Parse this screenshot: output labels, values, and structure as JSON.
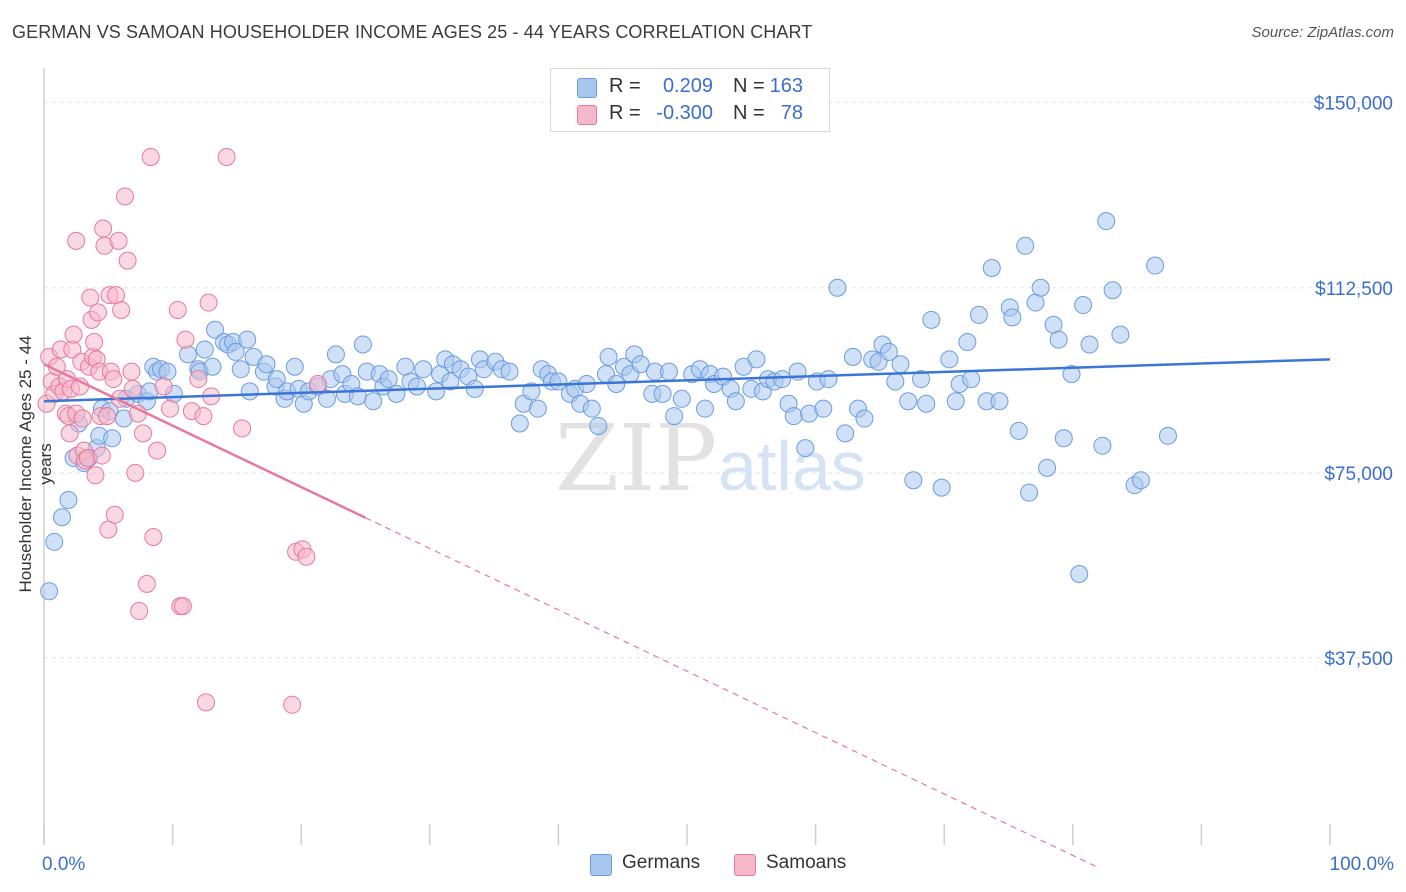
{
  "title": "GERMAN VS SAMOAN HOUSEHOLDER INCOME AGES 25 - 44 YEARS CORRELATION CHART",
  "source": "Source: ZipAtlas.com",
  "watermark": {
    "zip": "ZIP",
    "atlas": "atlas"
  },
  "legend_top": [
    {
      "r_label": "R =",
      "r_value": "0.209",
      "n_label": "N =",
      "n_value": "163",
      "color": "#a9c6ee"
    },
    {
      "r_label": "R =",
      "r_value": "-0.300",
      "n_label": "N =",
      "n_value": "78",
      "color": "#f5b8cb"
    }
  ],
  "legend_bottom": [
    {
      "label": "Germans",
      "color": "#a9c6ee"
    },
    {
      "label": "Samoans",
      "color": "#f5b8cb"
    }
  ],
  "chart_data": {
    "type": "scatter",
    "title": "GERMAN VS SAMOAN HOUSEHOLDER INCOME AGES 25 - 44 YEARS CORRELATION CHART",
    "xlabel": "",
    "ylabel": "Householder Income Ages 25 - 44 years",
    "xlim": [
      0,
      100
    ],
    "ylim": [
      0,
      155000
    ],
    "x_tick_labels": [
      "0.0%",
      "100.0%"
    ],
    "y_ticks": [
      37500,
      75000,
      112500,
      150000
    ],
    "y_tick_labels": [
      "$37,500",
      "$75,000",
      "$112,500",
      "$150,000"
    ],
    "grid": true,
    "legend_position": "top-center",
    "series": [
      {
        "name": "Germans",
        "color": "#6b9de0",
        "fill": "#a9c6ee",
        "trend": {
          "x": [
            0,
            100
          ],
          "y": [
            89500,
            98000
          ]
        },
        "points": [
          [
            0.4,
            51000
          ],
          [
            0.8,
            61000
          ],
          [
            1.4,
            66000
          ],
          [
            1.9,
            69500
          ],
          [
            2.3,
            78000
          ],
          [
            2.7,
            85000
          ],
          [
            3.1,
            77000
          ],
          [
            3.5,
            78000
          ],
          [
            4.1,
            80000
          ],
          [
            4.3,
            82500
          ],
          [
            4.5,
            88000
          ],
          [
            5.1,
            87500
          ],
          [
            5.3,
            82000
          ],
          [
            6.2,
            86000
          ],
          [
            6.4,
            90000
          ],
          [
            7.3,
            91000
          ],
          [
            8.0,
            89500
          ],
          [
            8.2,
            91500
          ],
          [
            8.5,
            96500
          ],
          [
            8.8,
            95500
          ],
          [
            9.1,
            96000
          ],
          [
            9.6,
            95500
          ],
          [
            10.1,
            91000
          ],
          [
            11.2,
            99000
          ],
          [
            12.0,
            96000
          ],
          [
            12.1,
            95500
          ],
          [
            12.5,
            100000
          ],
          [
            13.1,
            96500
          ],
          [
            13.3,
            104000
          ],
          [
            14.0,
            101500
          ],
          [
            14.3,
            101000
          ],
          [
            14.7,
            101500
          ],
          [
            14.9,
            99500
          ],
          [
            15.3,
            96000
          ],
          [
            15.8,
            102000
          ],
          [
            16.3,
            98500
          ],
          [
            16.0,
            91500
          ],
          [
            17.1,
            95500
          ],
          [
            17.3,
            97000
          ],
          [
            18.0,
            92500
          ],
          [
            18.1,
            94000
          ],
          [
            18.7,
            90000
          ],
          [
            18.9,
            91500
          ],
          [
            19.5,
            96500
          ],
          [
            19.8,
            92000
          ],
          [
            20.2,
            89000
          ],
          [
            20.6,
            91500
          ],
          [
            21.3,
            92500
          ],
          [
            22.0,
            90000
          ],
          [
            22.3,
            94000
          ],
          [
            22.7,
            99000
          ],
          [
            23.2,
            95000
          ],
          [
            23.4,
            91000
          ],
          [
            23.9,
            93000
          ],
          [
            24.4,
            90500
          ],
          [
            24.8,
            101000
          ],
          [
            25.1,
            95500
          ],
          [
            25.6,
            89500
          ],
          [
            26.1,
            95000
          ],
          [
            26.4,
            92500
          ],
          [
            26.8,
            94000
          ],
          [
            27.4,
            91000
          ],
          [
            28.1,
            96500
          ],
          [
            28.5,
            93500
          ],
          [
            29.0,
            92500
          ],
          [
            29.5,
            96000
          ],
          [
            30.5,
            91500
          ],
          [
            30.8,
            95000
          ],
          [
            31.2,
            98000
          ],
          [
            31.6,
            93500
          ],
          [
            31.8,
            97000
          ],
          [
            32.4,
            96000
          ],
          [
            33.0,
            94500
          ],
          [
            33.5,
            92000
          ],
          [
            33.9,
            98000
          ],
          [
            34.2,
            96000
          ],
          [
            35.1,
            97500
          ],
          [
            35.6,
            96000
          ],
          [
            36.2,
            95500
          ],
          [
            37.0,
            85000
          ],
          [
            37.3,
            89000
          ],
          [
            37.9,
            91500
          ],
          [
            38.4,
            88000
          ],
          [
            38.7,
            96000
          ],
          [
            39.2,
            95000
          ],
          [
            39.5,
            93500
          ],
          [
            40.0,
            93500
          ],
          [
            40.9,
            91000
          ],
          [
            41.3,
            92000
          ],
          [
            41.7,
            89000
          ],
          [
            42.2,
            93000
          ],
          [
            42.6,
            88000
          ],
          [
            43.1,
            84500
          ],
          [
            43.7,
            95000
          ],
          [
            43.9,
            98500
          ],
          [
            44.5,
            93000
          ],
          [
            45.1,
            96500
          ],
          [
            45.6,
            95000
          ],
          [
            45.9,
            99000
          ],
          [
            46.4,
            97000
          ],
          [
            47.3,
            91000
          ],
          [
            47.5,
            95500
          ],
          [
            48.1,
            91000
          ],
          [
            48.6,
            95500
          ],
          [
            49.0,
            86500
          ],
          [
            49.6,
            90000
          ],
          [
            50.4,
            95000
          ],
          [
            51.0,
            96000
          ],
          [
            51.4,
            88000
          ],
          [
            51.8,
            95000
          ],
          [
            52.1,
            93000
          ],
          [
            52.8,
            94500
          ],
          [
            53.4,
            92000
          ],
          [
            53.8,
            89500
          ],
          [
            54.4,
            96500
          ],
          [
            55.0,
            92000
          ],
          [
            55.4,
            98000
          ],
          [
            55.9,
            91500
          ],
          [
            56.3,
            94000
          ],
          [
            56.8,
            93500
          ],
          [
            57.4,
            94000
          ],
          [
            57.9,
            89000
          ],
          [
            58.3,
            86500
          ],
          [
            58.6,
            95500
          ],
          [
            59.2,
            80000
          ],
          [
            59.5,
            87000
          ],
          [
            60.1,
            93500
          ],
          [
            60.6,
            88000
          ],
          [
            61.0,
            94000
          ],
          [
            61.7,
            112500
          ],
          [
            62.3,
            83000
          ],
          [
            62.9,
            98500
          ],
          [
            63.3,
            88000
          ],
          [
            63.8,
            86000
          ],
          [
            64.4,
            98000
          ],
          [
            64.9,
            97500
          ],
          [
            65.2,
            101000
          ],
          [
            65.7,
            99500
          ],
          [
            66.2,
            93500
          ],
          [
            66.6,
            97000
          ],
          [
            67.2,
            89500
          ],
          [
            67.6,
            73500
          ],
          [
            68.2,
            94000
          ],
          [
            68.6,
            89000
          ],
          [
            69.0,
            106000
          ],
          [
            69.8,
            72000
          ],
          [
            70.4,
            98000
          ],
          [
            70.9,
            89500
          ],
          [
            71.2,
            93000
          ],
          [
            71.8,
            101500
          ],
          [
            72.1,
            94000
          ],
          [
            72.7,
            107000
          ],
          [
            73.3,
            89500
          ],
          [
            73.7,
            116500
          ],
          [
            74.3,
            89500
          ],
          [
            75.1,
            108500
          ],
          [
            75.3,
            106500
          ],
          [
            75.8,
            83500
          ],
          [
            76.3,
            121000
          ],
          [
            76.6,
            71000
          ],
          [
            77.1,
            109500
          ],
          [
            77.5,
            112500
          ],
          [
            78.0,
            76000
          ],
          [
            78.5,
            105000
          ],
          [
            78.9,
            102000
          ],
          [
            79.3,
            82000
          ],
          [
            79.9,
            95000
          ],
          [
            80.5,
            54500
          ],
          [
            80.8,
            109000
          ],
          [
            81.3,
            101000
          ],
          [
            82.3,
            80500
          ],
          [
            82.6,
            126000
          ],
          [
            83.1,
            112000
          ],
          [
            83.7,
            103000
          ],
          [
            84.8,
            72500
          ],
          [
            85.3,
            73500
          ],
          [
            86.4,
            117000
          ],
          [
            87.4,
            82500
          ]
        ]
      },
      {
        "name": "Samoans",
        "color": "#e8789e",
        "fill": "#f5b8cb",
        "trend": {
          "x": [
            0,
            82
          ],
          "y": [
            97000,
            -5000
          ]
        },
        "trend_solid_until_x": 25,
        "points": [
          [
            0.2,
            89000
          ],
          [
            0.4,
            98500
          ],
          [
            0.6,
            93500
          ],
          [
            0.8,
            91000
          ],
          [
            1.0,
            96500
          ],
          [
            1.2,
            92500
          ],
          [
            1.3,
            100000
          ],
          [
            1.5,
            91500
          ],
          [
            1.7,
            87000
          ],
          [
            1.8,
            94000
          ],
          [
            1.9,
            86500
          ],
          [
            2.0,
            83000
          ],
          [
            2.1,
            92000
          ],
          [
            2.2,
            100000
          ],
          [
            2.3,
            103000
          ],
          [
            2.5,
            87000
          ],
          [
            2.5,
            122000
          ],
          [
            2.6,
            78500
          ],
          [
            2.8,
            92500
          ],
          [
            2.9,
            97500
          ],
          [
            3.0,
            86000
          ],
          [
            3.1,
            79500
          ],
          [
            3.2,
            77500
          ],
          [
            3.4,
            78000
          ],
          [
            3.5,
            96500
          ],
          [
            3.6,
            110500
          ],
          [
            3.7,
            106000
          ],
          [
            3.8,
            98500
          ],
          [
            3.9,
            101500
          ],
          [
            4.0,
            74500
          ],
          [
            4.1,
            98000
          ],
          [
            4.2,
            107500
          ],
          [
            4.3,
            95500
          ],
          [
            4.4,
            86500
          ],
          [
            4.5,
            78500
          ],
          [
            4.6,
            124500
          ],
          [
            4.7,
            121000
          ],
          [
            4.9,
            86500
          ],
          [
            5.0,
            63500
          ],
          [
            5.1,
            111000
          ],
          [
            5.2,
            95500
          ],
          [
            5.4,
            94000
          ],
          [
            5.5,
            66500
          ],
          [
            5.6,
            111000
          ],
          [
            5.8,
            122000
          ],
          [
            5.9,
            90000
          ],
          [
            6.0,
            108000
          ],
          [
            6.3,
            131000
          ],
          [
            6.5,
            118000
          ],
          [
            6.8,
            95500
          ],
          [
            6.9,
            92000
          ],
          [
            7.1,
            75000
          ],
          [
            7.3,
            87000
          ],
          [
            7.4,
            47000
          ],
          [
            7.7,
            83000
          ],
          [
            8.0,
            52500
          ],
          [
            8.3,
            139000
          ],
          [
            8.5,
            62000
          ],
          [
            8.8,
            79500
          ],
          [
            9.3,
            92500
          ],
          [
            9.8,
            88000
          ],
          [
            10.4,
            108000
          ],
          [
            10.6,
            48000
          ],
          [
            10.8,
            48000
          ],
          [
            11.0,
            102000
          ],
          [
            11.5,
            87500
          ],
          [
            12.0,
            94000
          ],
          [
            12.4,
            86500
          ],
          [
            12.6,
            28500
          ],
          [
            12.8,
            109500
          ],
          [
            13.0,
            90500
          ],
          [
            14.2,
            139000
          ],
          [
            15.4,
            84000
          ],
          [
            19.3,
            28000
          ],
          [
            19.6,
            59000
          ],
          [
            20.1,
            59500
          ],
          [
            20.4,
            58000
          ],
          [
            21.3,
            93000
          ]
        ]
      }
    ]
  }
}
